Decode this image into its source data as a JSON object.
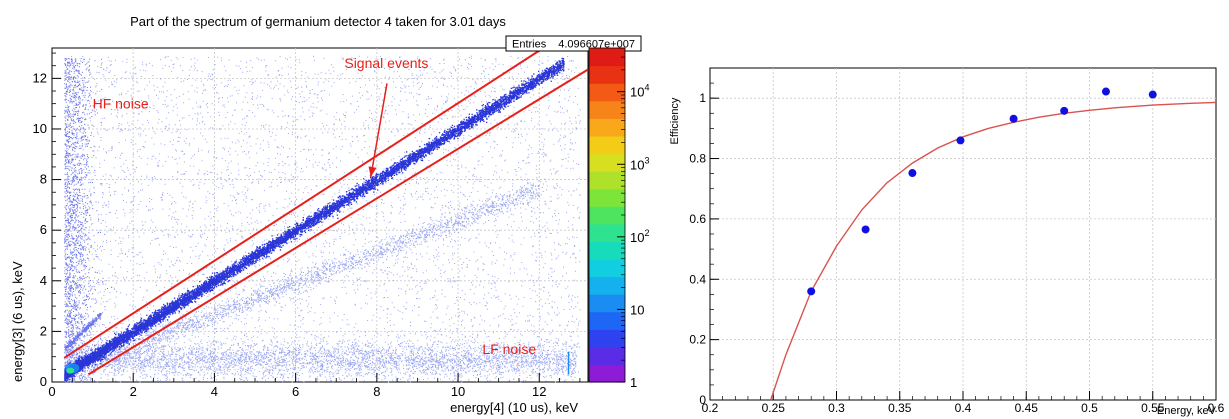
{
  "chart_data": [
    {
      "type": "heatmap",
      "title": "Part of the spectrum of germanium detector 4 taken for 3.01 days",
      "xlabel": "energy[4] (10 us), keV",
      "ylabel": "energy[3] (6 us), keV",
      "xlim": [
        0,
        13.2
      ],
      "ylim": [
        0,
        13.2
      ],
      "x_ticks": [
        {
          "value": 0,
          "label": "0"
        },
        {
          "value": 2,
          "label": "2"
        },
        {
          "value": 4,
          "label": "4"
        },
        {
          "value": 6,
          "label": "6"
        },
        {
          "value": 8,
          "label": "8"
        },
        {
          "value": 10,
          "label": "10"
        },
        {
          "value": 12,
          "label": "12"
        }
      ],
      "y_ticks": [
        {
          "value": 0,
          "label": "0"
        },
        {
          "value": 2,
          "label": "2"
        },
        {
          "value": 4,
          "label": "4"
        },
        {
          "value": 6,
          "label": "6"
        },
        {
          "value": 8,
          "label": "8"
        },
        {
          "value": 10,
          "label": "10"
        },
        {
          "value": 12,
          "label": "12"
        }
      ],
      "grid": true,
      "stats_box": {
        "label": "Entries",
        "value": "4.096607e+007"
      },
      "colorbar": {
        "scale": "log",
        "range": [
          1,
          40000
        ],
        "ticks": [
          {
            "value": 1,
            "label": "1"
          },
          {
            "value": 10,
            "label": "10"
          },
          {
            "value": 100,
            "label": "10",
            "sup": "2"
          },
          {
            "value": 1000,
            "label": "10",
            "sup": "3"
          },
          {
            "value": 10000,
            "label": "10",
            "sup": "4"
          }
        ],
        "colors": [
          "#8e1bd6",
          "#5b2ce6",
          "#2f42f0",
          "#1e66f5",
          "#1a8cf2",
          "#14b1ee",
          "#11cfe0",
          "#17dcbc",
          "#2ee290",
          "#4ee460",
          "#7de43a",
          "#aee22a",
          "#d8de20",
          "#f3cc18",
          "#f8a818",
          "#f78418",
          "#f25a16",
          "#e93214",
          "#de1b14"
        ]
      },
      "cut_lines": [
        {
          "x": [
            0.3,
            12.1
          ],
          "y": [
            0.95,
            13.2
          ]
        },
        {
          "x": [
            0.9,
            13.2
          ],
          "y": [
            0.3,
            12.35
          ]
        }
      ],
      "annotations": [
        {
          "text": "Signal events",
          "x": 7.2,
          "y": 12.4,
          "color": "#e8201a"
        },
        {
          "text": "HF noise",
          "x": 1.0,
          "y": 10.8,
          "color": "#e8201a"
        },
        {
          "text": "LF noise",
          "x": 10.6,
          "y": 1.1,
          "color": "#e8201a"
        }
      ],
      "arrow": {
        "from": [
          8.25,
          11.8
        ],
        "to": [
          7.85,
          8.1
        ],
        "color": "#e8201a"
      }
    },
    {
      "type": "scatter",
      "title": "",
      "xlabel": "Energy, keV",
      "ylabel": "Efficiency",
      "xlim": [
        0.2,
        0.6
      ],
      "ylim": [
        0,
        1.1
      ],
      "x_ticks": [
        {
          "value": 0.2,
          "label": "0.2"
        },
        {
          "value": 0.25,
          "label": "0.25"
        },
        {
          "value": 0.3,
          "label": "0.3"
        },
        {
          "value": 0.35,
          "label": "0.35"
        },
        {
          "value": 0.4,
          "label": "0.4"
        },
        {
          "value": 0.45,
          "label": "0.45"
        },
        {
          "value": 0.5,
          "label": "0.5"
        },
        {
          "value": 0.55,
          "label": "0.55"
        },
        {
          "value": 0.6,
          "label": "0.6"
        }
      ],
      "y_ticks": [
        {
          "value": 0,
          "label": "0"
        },
        {
          "value": 0.2,
          "label": "0.2"
        },
        {
          "value": 0.4,
          "label": "0.4"
        },
        {
          "value": 0.6,
          "label": "0.6"
        },
        {
          "value": 0.8,
          "label": "0.8"
        },
        {
          "value": 1,
          "label": "1"
        }
      ],
      "grid": true,
      "series": [
        {
          "marker_color": "#1010e0",
          "x": [
            0.28,
            0.323,
            0.36,
            0.398,
            0.44,
            0.48,
            0.513,
            0.55
          ],
          "y": [
            0.36,
            0.565,
            0.752,
            0.86,
            0.932,
            0.958,
            1.022,
            1.012
          ]
        }
      ],
      "fit_curve": {
        "color": "#d9534f",
        "x": [
          0.248,
          0.26,
          0.28,
          0.3,
          0.32,
          0.34,
          0.36,
          0.38,
          0.4,
          0.42,
          0.44,
          0.46,
          0.48,
          0.5,
          0.52,
          0.55,
          0.58,
          0.6
        ],
        "y": [
          0.0,
          0.15,
          0.36,
          0.51,
          0.63,
          0.72,
          0.785,
          0.835,
          0.872,
          0.9,
          0.92,
          0.937,
          0.95,
          0.96,
          0.968,
          0.977,
          0.983,
          0.986
        ]
      }
    }
  ]
}
